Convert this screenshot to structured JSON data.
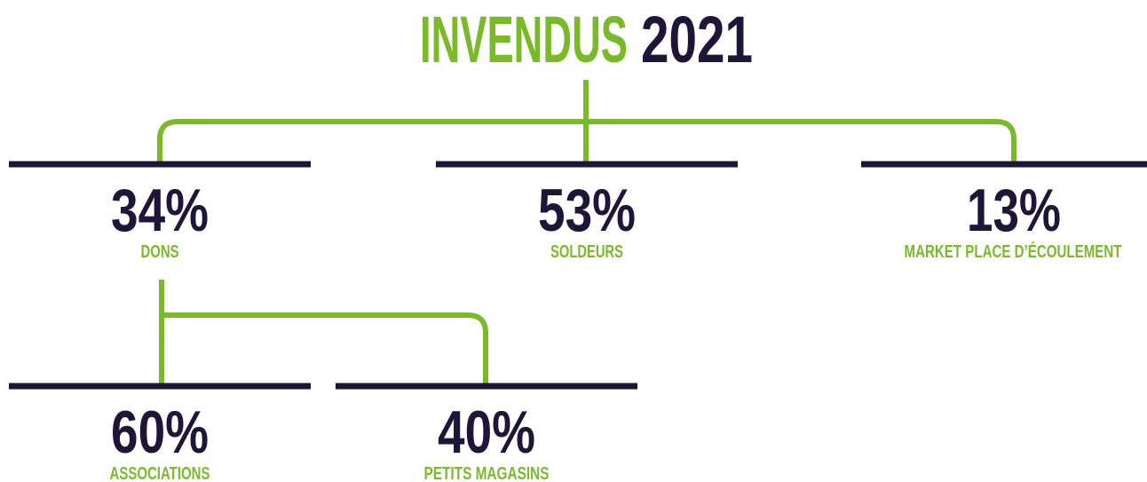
{
  "title": {
    "part1": "INVENDUS",
    "part2": "2021"
  },
  "nodes": [
    {
      "value": "34%",
      "label": "DONS"
    },
    {
      "value": "53%",
      "label": "SOLDEURS"
    },
    {
      "value": "13%",
      "label": "MARKET PLACE D’ÉCOULEMENT"
    },
    {
      "value": "60%",
      "label": "ASSOCIATIONS"
    },
    {
      "value": "40%",
      "label": "PETITS MAGASINS"
    }
  ]
}
